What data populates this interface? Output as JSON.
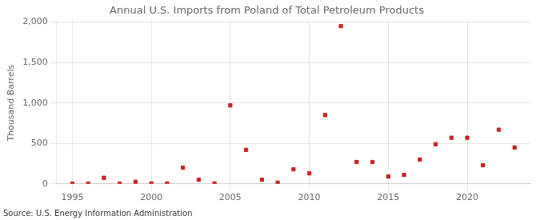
{
  "chart_data": {
    "type": "scatter",
    "title": "Annual U.S. Imports from Poland of Total Petroleum Products",
    "ylabel": "Thousand Barrels",
    "annotation": "Source: U.S. Energy Information Administration",
    "x": [
      1995,
      1996,
      1997,
      1998,
      1999,
      2000,
      2001,
      2002,
      2003,
      2004,
      2005,
      2006,
      2007,
      2008,
      2009,
      2010,
      2011,
      2012,
      2013,
      2014,
      2015,
      2016,
      2017,
      2018,
      2019,
      2020,
      2021,
      2022,
      2023
    ],
    "values": [
      2,
      2,
      75,
      2,
      25,
      5,
      5,
      200,
      50,
      5,
      970,
      420,
      50,
      15,
      180,
      130,
      850,
      1950,
      270,
      270,
      90,
      110,
      300,
      490,
      570,
      570,
      230,
      670,
      450
    ],
    "color": "#cc2222",
    "marker": "square",
    "xlim": [
      1994,
      2024
    ],
    "xticks": [
      1995,
      2000,
      2005,
      2010,
      2015,
      2020
    ],
    "ylim": [
      0,
      2000
    ],
    "yticks": [
      0,
      500,
      {
        "value": 1000,
        "label": "1,000"
      },
      {
        "value": 1500,
        "label": "1,500"
      },
      {
        "value": 2000,
        "label": "2,000"
      }
    ],
    "grid": true
  }
}
